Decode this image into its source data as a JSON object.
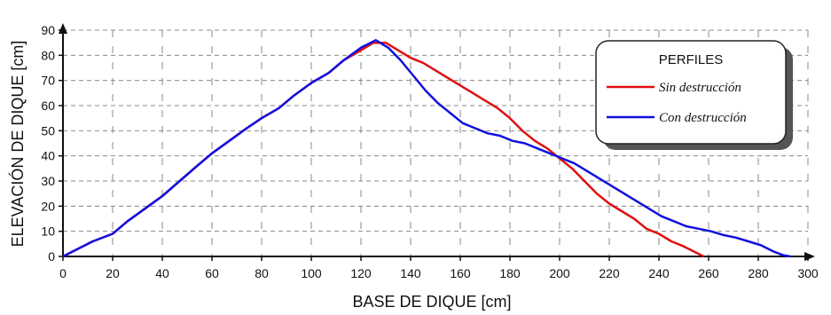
{
  "chart_data": {
    "type": "line",
    "xlabel": "BASE DE DIQUE [cm]",
    "ylabel": "ELEVACIÓN DE DIQUE [cm]",
    "xlim": [
      0,
      300
    ],
    "ylim": [
      0,
      90
    ],
    "x_ticks": [
      0,
      20,
      40,
      60,
      80,
      100,
      120,
      140,
      160,
      180,
      200,
      220,
      240,
      260,
      280,
      300
    ],
    "y_ticks": [
      0,
      10,
      20,
      30,
      40,
      50,
      60,
      70,
      80,
      90
    ],
    "grid": true,
    "legend": {
      "title": "PERFILES",
      "position": "top-right"
    },
    "series": [
      {
        "name": "Sin destrucción",
        "color": "#e01010",
        "points": [
          [
            0,
            0
          ],
          [
            6,
            3
          ],
          [
            12,
            6
          ],
          [
            20,
            9
          ],
          [
            26,
            14
          ],
          [
            33,
            19
          ],
          [
            40,
            24
          ],
          [
            47,
            30
          ],
          [
            54,
            36
          ],
          [
            60,
            41
          ],
          [
            67,
            46
          ],
          [
            74,
            51
          ],
          [
            80,
            55
          ],
          [
            87,
            59
          ],
          [
            93,
            64
          ],
          [
            100,
            69
          ],
          [
            107,
            73
          ],
          [
            113,
            78
          ],
          [
            120,
            82
          ],
          [
            125,
            85
          ],
          [
            130,
            85
          ],
          [
            135,
            82
          ],
          [
            140,
            79
          ],
          [
            145,
            77
          ],
          [
            150,
            74
          ],
          [
            155,
            71
          ],
          [
            160,
            68
          ],
          [
            165,
            65
          ],
          [
            170,
            62
          ],
          [
            175,
            59
          ],
          [
            180,
            55
          ],
          [
            185,
            50
          ],
          [
            190,
            46
          ],
          [
            195,
            43
          ],
          [
            200,
            39
          ],
          [
            205,
            35
          ],
          [
            210,
            30
          ],
          [
            215,
            25
          ],
          [
            220,
            21
          ],
          [
            225,
            18
          ],
          [
            230,
            15
          ],
          [
            235,
            11
          ],
          [
            240,
            9
          ],
          [
            245,
            6
          ],
          [
            250,
            4
          ],
          [
            255,
            1.5
          ],
          [
            258,
            0
          ]
        ]
      },
      {
        "name": "Con destrucción",
        "color": "#1010e0",
        "points": [
          [
            0,
            0
          ],
          [
            6,
            3
          ],
          [
            12,
            6
          ],
          [
            20,
            9
          ],
          [
            26,
            14
          ],
          [
            33,
            19
          ],
          [
            40,
            24
          ],
          [
            47,
            30
          ],
          [
            54,
            36
          ],
          [
            60,
            41
          ],
          [
            67,
            46
          ],
          [
            74,
            51
          ],
          [
            80,
            55
          ],
          [
            87,
            59
          ],
          [
            93,
            64
          ],
          [
            100,
            69
          ],
          [
            107,
            73
          ],
          [
            113,
            78
          ],
          [
            120,
            83
          ],
          [
            126,
            86
          ],
          [
            131,
            83
          ],
          [
            136,
            78
          ],
          [
            141,
            72
          ],
          [
            146,
            66
          ],
          [
            151,
            61
          ],
          [
            156,
            57
          ],
          [
            161,
            53
          ],
          [
            166,
            51
          ],
          [
            171,
            49
          ],
          [
            176,
            48
          ],
          [
            181,
            46
          ],
          [
            186,
            45
          ],
          [
            191,
            43
          ],
          [
            196,
            41
          ],
          [
            201,
            39
          ],
          [
            206,
            37
          ],
          [
            211,
            34
          ],
          [
            216,
            31
          ],
          [
            221,
            28
          ],
          [
            226,
            25
          ],
          [
            231,
            22
          ],
          [
            236,
            19
          ],
          [
            241,
            16
          ],
          [
            246,
            14
          ],
          [
            251,
            12
          ],
          [
            256,
            11
          ],
          [
            261,
            10
          ],
          [
            266,
            8.5
          ],
          [
            271,
            7.5
          ],
          [
            276,
            6
          ],
          [
            281,
            4.5
          ],
          [
            286,
            2
          ],
          [
            290,
            0.5
          ],
          [
            293,
            0
          ]
        ]
      }
    ]
  }
}
